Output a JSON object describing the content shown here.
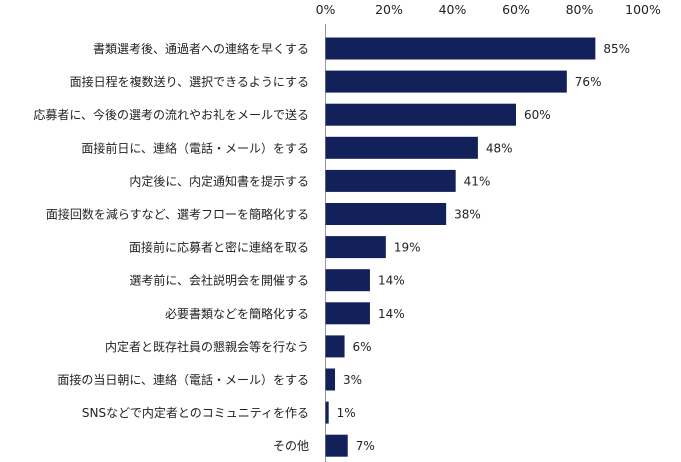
{
  "chart_data": {
    "type": "bar",
    "orientation": "horizontal",
    "title": "",
    "xlabel": "",
    "ylabel": "",
    "xlim": [
      0,
      100
    ],
    "x_ticks": [
      "0%",
      "20%",
      "40%",
      "60%",
      "80%",
      "100%"
    ],
    "bar_color": "#12215a",
    "categories": [
      "書類選考後、通過者への連絡を早くする",
      "面接日程を複数送り、選択できるようにする",
      "応募者に、今後の選考の流れやお礼をメールで送る",
      "面接前日に、連絡（電話・メール）をする",
      "内定後に、内定通知書を提示する",
      "面接回数を減らすなど、選考フローを簡略化する",
      "面接前に応募者と密に連絡を取る",
      "選考前に、会社説明会を開催する",
      "必要書類などを簡略化する",
      "内定者と既存社員の懇親会等を行なう",
      "面接の当日朝に、連絡（電話・メール）をする",
      "SNSなどで内定者とのコミュニティを作る",
      "その他"
    ],
    "values": [
      85,
      76,
      60,
      48,
      41,
      38,
      19,
      14,
      14,
      6,
      3,
      1,
      7
    ],
    "value_labels": [
      "85%",
      "76%",
      "60%",
      "48%",
      "41%",
      "38%",
      "19%",
      "14%",
      "14%",
      "6%",
      "3%",
      "1%",
      "7%"
    ]
  }
}
